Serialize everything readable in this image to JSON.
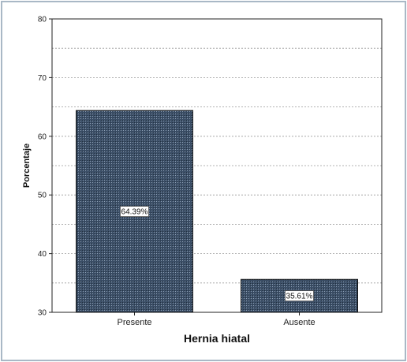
{
  "chart_data": {
    "type": "bar",
    "title": "",
    "xlabel": "Hernia hiatal",
    "ylabel": "Porcentaje",
    "categories": [
      "Presente",
      "Ausente"
    ],
    "values": [
      64.39,
      35.61
    ],
    "data_labels": [
      "64.39%",
      "35.61%"
    ],
    "ylim": [
      30,
      80
    ],
    "yticks": [
      30,
      40,
      50,
      60,
      70,
      80
    ],
    "ytick_labels": [
      "30",
      "40",
      "50",
      "60",
      "70",
      "80"
    ],
    "gridlines": "dashed horizontal, every 5 units",
    "bar_color": "#3b4e66",
    "bar_pattern": "crosshatch"
  }
}
